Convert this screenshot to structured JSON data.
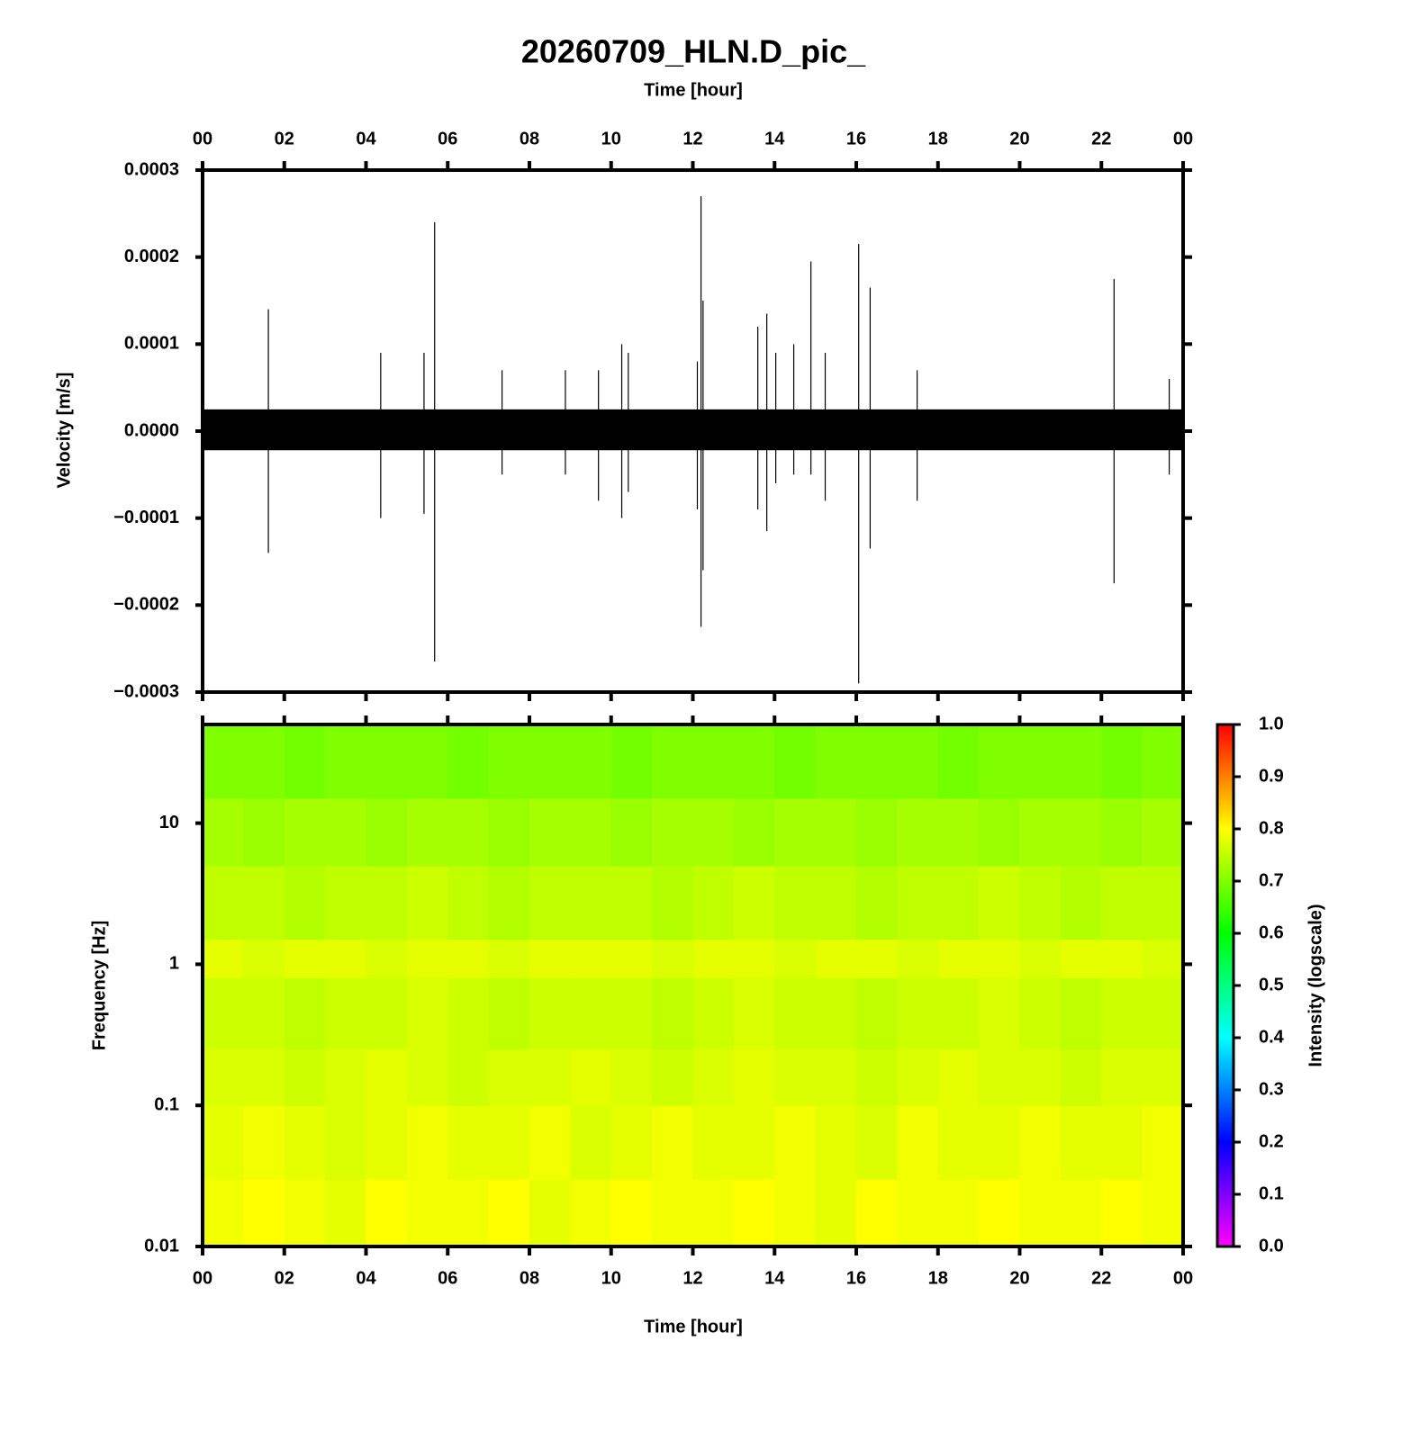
{
  "chart_data": [
    {
      "type": "waveform",
      "title": "20260709_HLN.D_pic_",
      "x_label": "Time [hour]",
      "y_label": "Velocity [m/s]",
      "color": "#000000",
      "xlim": [
        0,
        24
      ],
      "xticks": [
        {
          "value": 0,
          "label": "00"
        },
        {
          "value": 2,
          "label": "02"
        },
        {
          "value": 4,
          "label": "04"
        },
        {
          "value": 6,
          "label": "06"
        },
        {
          "value": 8,
          "label": "08"
        },
        10,
        12,
        14,
        16,
        18,
        20,
        22,
        {
          "value": 24,
          "label": "00"
        }
      ],
      "ylim": [
        -0.0003,
        0.0003
      ],
      "yticks": [
        {
          "value": -0.0003,
          "label": "−0.0003"
        },
        {
          "value": -0.0002,
          "label": "−0.0002"
        },
        {
          "value": -0.0001,
          "label": "−0.0001"
        },
        {
          "value": 0,
          "label": "0.0000"
        },
        0.0001,
        0.0002,
        0.0003
      ],
      "x": [
        1.61,
        4.36,
        5.42,
        5.68,
        7.33,
        8.88,
        9.69,
        10.26,
        10.42,
        12.11,
        12.2,
        12.25,
        13.59,
        13.81,
        14.03,
        14.47,
        14.89,
        15.24,
        16.06,
        16.34,
        17.49,
        22.31,
        23.66
      ],
      "max": [
        0.00014,
        9e-05,
        9e-05,
        0.00024,
        7e-05,
        7e-05,
        7e-05,
        0.0001,
        9e-05,
        8e-05,
        0.00027,
        0.00015,
        0.00012,
        0.000135,
        9e-05,
        0.0001,
        0.000195,
        9e-05,
        0.000215,
        0.000165,
        7e-05,
        0.000175,
        6e-05
      ],
      "min": [
        -0.00014,
        -0.0001,
        -9.5e-05,
        -0.000265,
        -5e-05,
        -5e-05,
        -8e-05,
        -0.0001,
        -7e-05,
        -9e-05,
        -0.000225,
        -0.00016,
        -9e-05,
        -0.000115,
        -6e-05,
        -5e-05,
        -5e-05,
        -8e-05,
        -0.00029,
        -0.000135,
        -8e-05,
        -0.000175,
        -5e-05
      ],
      "band_x": [
        0,
        24
      ],
      "band_upper": [
        2.5e-05,
        2.5e-05
      ],
      "band_lower": [
        -2.2e-05,
        -2.2e-05
      ]
    },
    {
      "type": "spectrogram",
      "x_label": "Time [hour]",
      "y_label": "Frequency [Hz]",
      "log_y": true,
      "xlim": [
        0,
        24
      ],
      "xticks": [
        {
          "value": 0,
          "label": "00"
        },
        {
          "value": 2,
          "label": "02"
        },
        {
          "value": 4,
          "label": "04"
        },
        {
          "value": 6,
          "label": "06"
        },
        {
          "value": 8,
          "label": "08"
        },
        10,
        12,
        14,
        16,
        18,
        20,
        22,
        {
          "value": 24,
          "label": "00"
        }
      ],
      "ylim": [
        0.01,
        50
      ],
      "yticks": [
        0.01,
        0.1,
        1,
        10
      ],
      "time_bins": [
        0,
        1,
        2,
        3,
        4,
        5,
        6,
        7,
        8,
        9,
        10,
        11,
        12,
        13,
        14,
        15,
        16,
        17,
        18,
        19,
        20,
        21,
        22,
        23,
        24
      ],
      "freq_bins": [
        0.01,
        0.03,
        0.1,
        0.25,
        0.8,
        1.5,
        5,
        15,
        50
      ],
      "z": [
        [
          0.79,
          0.8,
          0.79,
          0.78,
          0.8,
          0.79,
          0.79,
          0.8,
          0.78,
          0.79,
          0.8,
          0.79,
          0.79,
          0.8,
          0.79,
          0.78,
          0.8,
          0.79,
          0.79,
          0.8,
          0.79,
          0.79,
          0.8,
          0.79
        ],
        [
          0.78,
          0.79,
          0.78,
          0.77,
          0.78,
          0.79,
          0.78,
          0.78,
          0.79,
          0.77,
          0.78,
          0.79,
          0.78,
          0.78,
          0.79,
          0.78,
          0.77,
          0.79,
          0.78,
          0.78,
          0.79,
          0.78,
          0.78,
          0.79
        ],
        [
          0.77,
          0.77,
          0.76,
          0.77,
          0.78,
          0.77,
          0.76,
          0.77,
          0.77,
          0.78,
          0.77,
          0.76,
          0.77,
          0.78,
          0.77,
          0.77,
          0.76,
          0.77,
          0.78,
          0.77,
          0.77,
          0.76,
          0.77,
          0.77
        ],
        [
          0.76,
          0.76,
          0.75,
          0.76,
          0.76,
          0.77,
          0.76,
          0.75,
          0.76,
          0.76,
          0.76,
          0.75,
          0.76,
          0.77,
          0.76,
          0.76,
          0.75,
          0.76,
          0.76,
          0.77,
          0.76,
          0.75,
          0.76,
          0.76
        ],
        [
          0.78,
          0.77,
          0.78,
          0.78,
          0.77,
          0.78,
          0.78,
          0.77,
          0.78,
          0.78,
          0.78,
          0.77,
          0.78,
          0.78,
          0.77,
          0.78,
          0.78,
          0.77,
          0.78,
          0.78,
          0.77,
          0.78,
          0.78,
          0.77
        ],
        [
          0.75,
          0.75,
          0.74,
          0.75,
          0.75,
          0.76,
          0.75,
          0.74,
          0.75,
          0.75,
          0.75,
          0.74,
          0.75,
          0.76,
          0.75,
          0.75,
          0.74,
          0.75,
          0.75,
          0.76,
          0.75,
          0.74,
          0.75,
          0.75
        ],
        [
          0.73,
          0.72,
          0.73,
          0.73,
          0.72,
          0.73,
          0.73,
          0.72,
          0.73,
          0.73,
          0.72,
          0.73,
          0.73,
          0.72,
          0.73,
          0.73,
          0.72,
          0.73,
          0.73,
          0.72,
          0.73,
          0.73,
          0.72,
          0.73
        ],
        [
          0.7,
          0.7,
          0.69,
          0.7,
          0.7,
          0.7,
          0.69,
          0.7,
          0.7,
          0.7,
          0.69,
          0.7,
          0.7,
          0.7,
          0.69,
          0.7,
          0.7,
          0.7,
          0.69,
          0.7,
          0.7,
          0.7,
          0.69,
          0.7
        ]
      ],
      "colormap": [
        "#ff00ff",
        "#0000ff",
        "#00ffff",
        "#00ff00",
        "#ffff00",
        "#ff0000"
      ],
      "clim": [
        0,
        1
      ],
      "cticks": [
        {
          "value": 0,
          "label": "0.0"
        },
        0.1,
        0.2,
        0.3,
        0.4,
        0.5,
        0.6,
        0.7,
        0.8,
        0.9,
        {
          "value": 1,
          "label": "1.0"
        }
      ],
      "colorbar_label": "Intensity (logscale)"
    }
  ]
}
